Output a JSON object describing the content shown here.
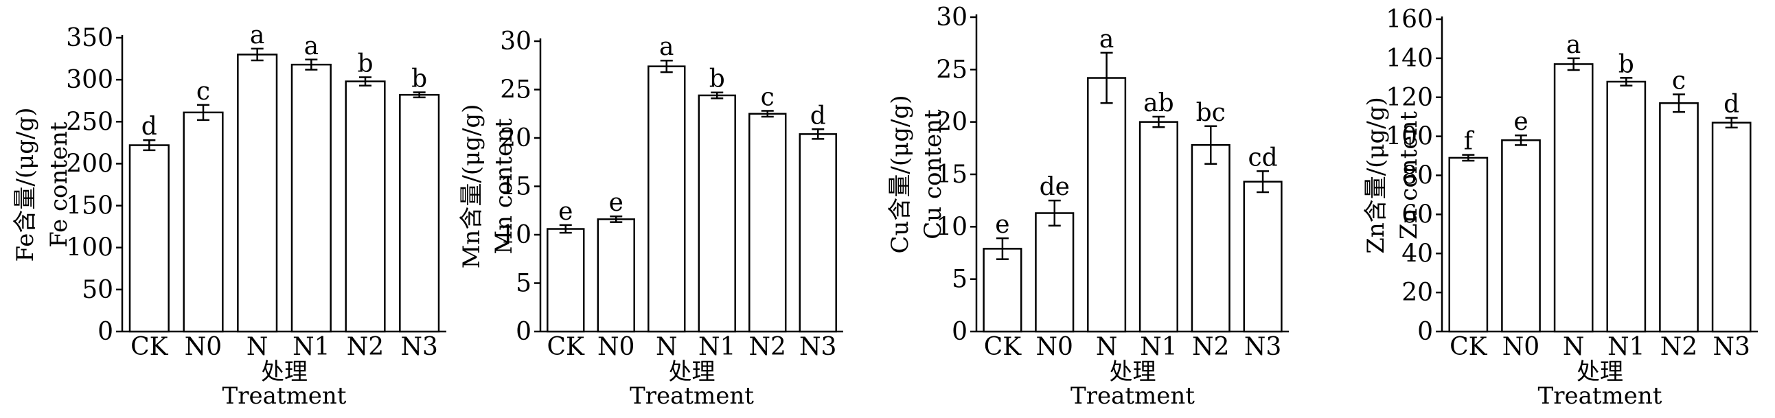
{
  "chart_data": [
    {
      "type": "bar",
      "categories": [
        "CK",
        "N0",
        "N",
        "N1",
        "N2",
        "N3"
      ],
      "values": [
        222,
        261,
        330,
        318,
        298,
        282
      ],
      "errors": [
        6,
        9,
        7,
        6,
        5,
        3
      ],
      "significance": [
        "d",
        "c",
        "a",
        "a",
        "b",
        "b"
      ],
      "ylim": [
        0,
        350
      ],
      "yticks": [
        0,
        50,
        100,
        150,
        200,
        250,
        300,
        350
      ],
      "ylabel_cn": "Fe含量/(μg/g)",
      "ylabel_en": "Fe content",
      "xlabel_cn": "处理",
      "xlabel_en": "Treatment"
    },
    {
      "type": "bar",
      "categories": [
        "CK",
        "N0",
        "N",
        "N1",
        "N2",
        "N3"
      ],
      "values": [
        10.6,
        11.6,
        27.4,
        24.4,
        22.5,
        20.4
      ],
      "errors": [
        0.4,
        0.3,
        0.6,
        0.3,
        0.3,
        0.5
      ],
      "significance": [
        "e",
        "e",
        "a",
        "b",
        "c",
        "d"
      ],
      "ylim": [
        0,
        30
      ],
      "yticks": [
        0,
        5,
        10,
        15,
        20,
        25,
        30
      ],
      "ylabel_cn": "Mn含量/(μg/g)",
      "ylabel_en": "Mn content",
      "xlabel_cn": "处理",
      "xlabel_en": "Treatment"
    },
    {
      "type": "bar",
      "categories": [
        "CK",
        "N0",
        "N",
        "N1",
        "N2",
        "N3"
      ],
      "values": [
        7.9,
        11.3,
        24.2,
        20.0,
        17.8,
        14.3
      ],
      "errors": [
        1.0,
        1.2,
        2.4,
        0.5,
        1.8,
        1.0
      ],
      "significance": [
        "e",
        "de",
        "a",
        "ab",
        "bc",
        "cd"
      ],
      "ylim": [
        0,
        30
      ],
      "yticks": [
        0,
        5,
        10,
        15,
        20,
        25,
        30
      ],
      "ylabel_cn": "Cu含量/(μg/g)",
      "ylabel_en": "Cu content",
      "xlabel_cn": "处理",
      "xlabel_en": "Treatment"
    },
    {
      "type": "bar",
      "categories": [
        "CK",
        "N0",
        "N",
        "N1",
        "N2",
        "N3"
      ],
      "values": [
        89,
        98,
        137,
        128,
        117,
        107
      ],
      "errors": [
        1.5,
        2.5,
        3,
        2,
        4.5,
        2.5
      ],
      "significance": [
        "f",
        "e",
        "a",
        "b",
        "c",
        "d"
      ],
      "ylim": [
        0,
        160
      ],
      "yticks": [
        0,
        20,
        40,
        60,
        80,
        100,
        120,
        140,
        160
      ],
      "ylabel_cn": "Zn含量/(μg/g)",
      "ylabel_en": "Zn content",
      "xlabel_cn": "处理",
      "xlabel_en": "Treatment"
    }
  ]
}
